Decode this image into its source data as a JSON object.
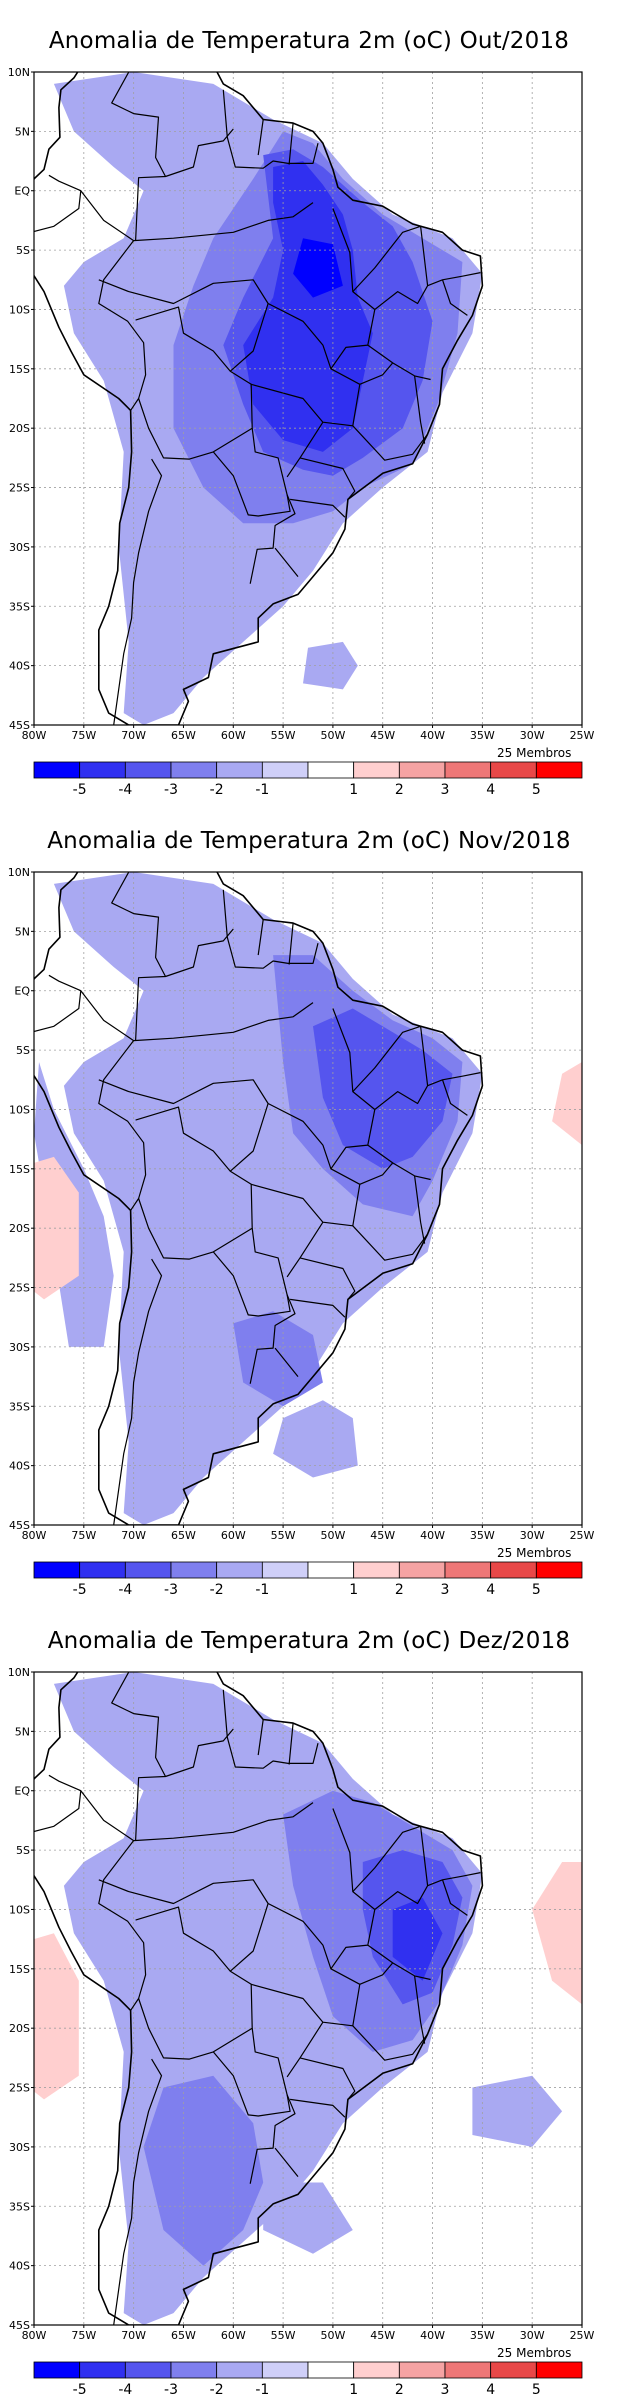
{
  "panels": [
    {
      "title": "Anomalia de Temperatura 2m (oC) Out/2018",
      "members_label": "25 Membros"
    },
    {
      "title": "Anomalia de Temperatura 2m (oC) Nov/2018",
      "members_label": "25 Membros"
    },
    {
      "title": "Anomalia de Temperatura 2m (oC) Dez/2018",
      "members_label": "25 Membros"
    }
  ],
  "axes": {
    "lat_ticks": [
      "10N",
      "5N",
      "EQ",
      "5S",
      "10S",
      "15S",
      "20S",
      "25S",
      "30S",
      "35S",
      "40S",
      "45S"
    ],
    "lon_ticks": [
      "80W",
      "75W",
      "70W",
      "65W",
      "60W",
      "55W",
      "50W",
      "45W",
      "40W",
      "35W",
      "30W",
      "25W"
    ]
  },
  "colorbar": {
    "labels": [
      "-5",
      "-4",
      "-3",
      "-2",
      "-1",
      "1",
      "2",
      "3",
      "4",
      "5"
    ],
    "colors": [
      "#0000ff",
      "#3030f0",
      "#5555ee",
      "#7f7fee",
      "#a9a9f2",
      "#cfcff8",
      "#ffffff",
      "#ffcfcf",
      "#f5a3a3",
      "#ee7777",
      "#e84848",
      "#ff0000"
    ]
  }
}
